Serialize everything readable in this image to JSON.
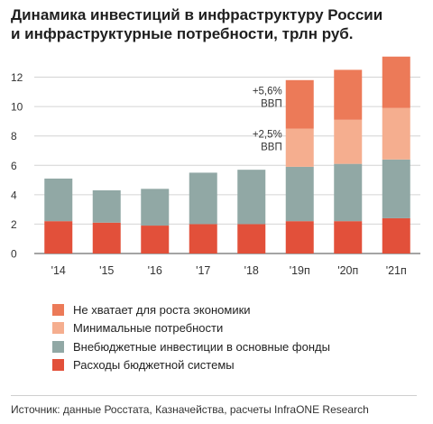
{
  "title_line1": "Динамика инвестиций в инфраструктуру России",
  "title_line2": "и инфраструктурные потребности, трлн руб.",
  "source": "Источник: данные Росстата, Казначейства, расчеты InfraONE Research",
  "colors": {
    "budget": "#e2503a",
    "extrabudget": "#91a8a5",
    "minimal": "#f5ae8f",
    "shortfall": "#ec7a58",
    "axis": "#6e6e6e",
    "grid": "#d4d4d4"
  },
  "chart_data": {
    "type": "bar",
    "stacked": true,
    "categories": [
      "'14",
      "'15",
      "'16",
      "'17",
      "'18",
      "'19п",
      "'20п",
      "'21п"
    ],
    "series": [
      {
        "name": "Расходы бюджетной системы",
        "color_key": "budget",
        "values": [
          2.2,
          2.1,
          1.9,
          2.0,
          2.0,
          2.2,
          2.2,
          2.4
        ]
      },
      {
        "name": "Внебюджетные инвестиции в основные фонды",
        "color_key": "extrabudget",
        "values": [
          2.9,
          2.2,
          2.5,
          3.5,
          3.7,
          3.7,
          3.9,
          4.0
        ]
      },
      {
        "name": "Минимальные потребности",
        "color_key": "minimal",
        "values": [
          0,
          0,
          0,
          0,
          0,
          2.6,
          3.0,
          3.5
        ]
      },
      {
        "name": "Не хватает для роста экономики",
        "color_key": "shortfall",
        "values": [
          0,
          0,
          0,
          0,
          0,
          3.3,
          3.4,
          3.5
        ]
      }
    ],
    "ylim": [
      0,
      13.2
    ],
    "yticks": [
      0,
      2,
      4,
      6,
      8,
      10,
      12
    ],
    "legend_position": "bottom",
    "annotations": [
      {
        "line1": "+5,6%",
        "line2": "ВВП",
        "category": "'19п",
        "series": "Не хватает для роста экономики"
      },
      {
        "line1": "+2,5%",
        "line2": "ВВП",
        "category": "'19п",
        "series": "Минимальные потребности"
      }
    ]
  }
}
